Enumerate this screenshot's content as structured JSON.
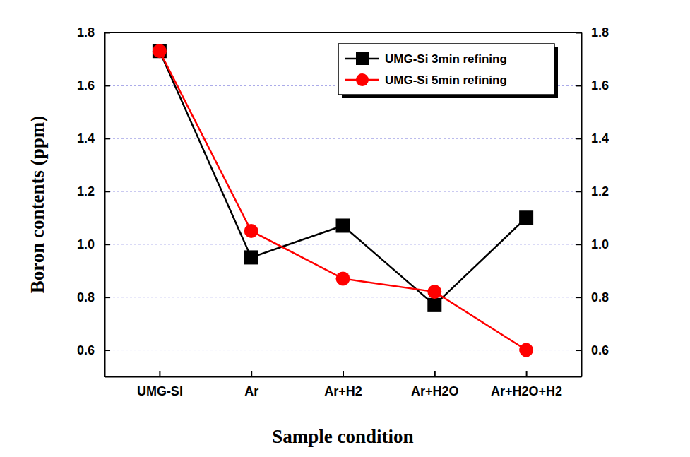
{
  "chart_data": {
    "type": "line",
    "x_label": "Sample condition",
    "y_label": "Boron contents (ppm)",
    "categories": [
      "UMG-Si",
      "Ar",
      "Ar+H2",
      "Ar+H2O",
      "Ar+H2O+H2"
    ],
    "series": [
      {
        "name": "UMG-Si 3min refining",
        "color": "#000000",
        "marker": "square",
        "line_style": "solid",
        "values": [
          1.73,
          0.95,
          1.07,
          0.77,
          1.1
        ]
      },
      {
        "name": "UMG-Si 5min refining",
        "color": "#ff0000",
        "marker": "circle",
        "line_style": "solid",
        "values": [
          1.73,
          1.05,
          0.87,
          0.82,
          0.6
        ]
      }
    ],
    "ylim": [
      0.5,
      1.8
    ],
    "yticks": [
      0.6,
      0.8,
      {
        "value": 1,
        "label": "1.0"
      },
      1.2,
      1.4,
      1.6,
      1.8
    ],
    "grid": true,
    "legend": "upper right"
  }
}
